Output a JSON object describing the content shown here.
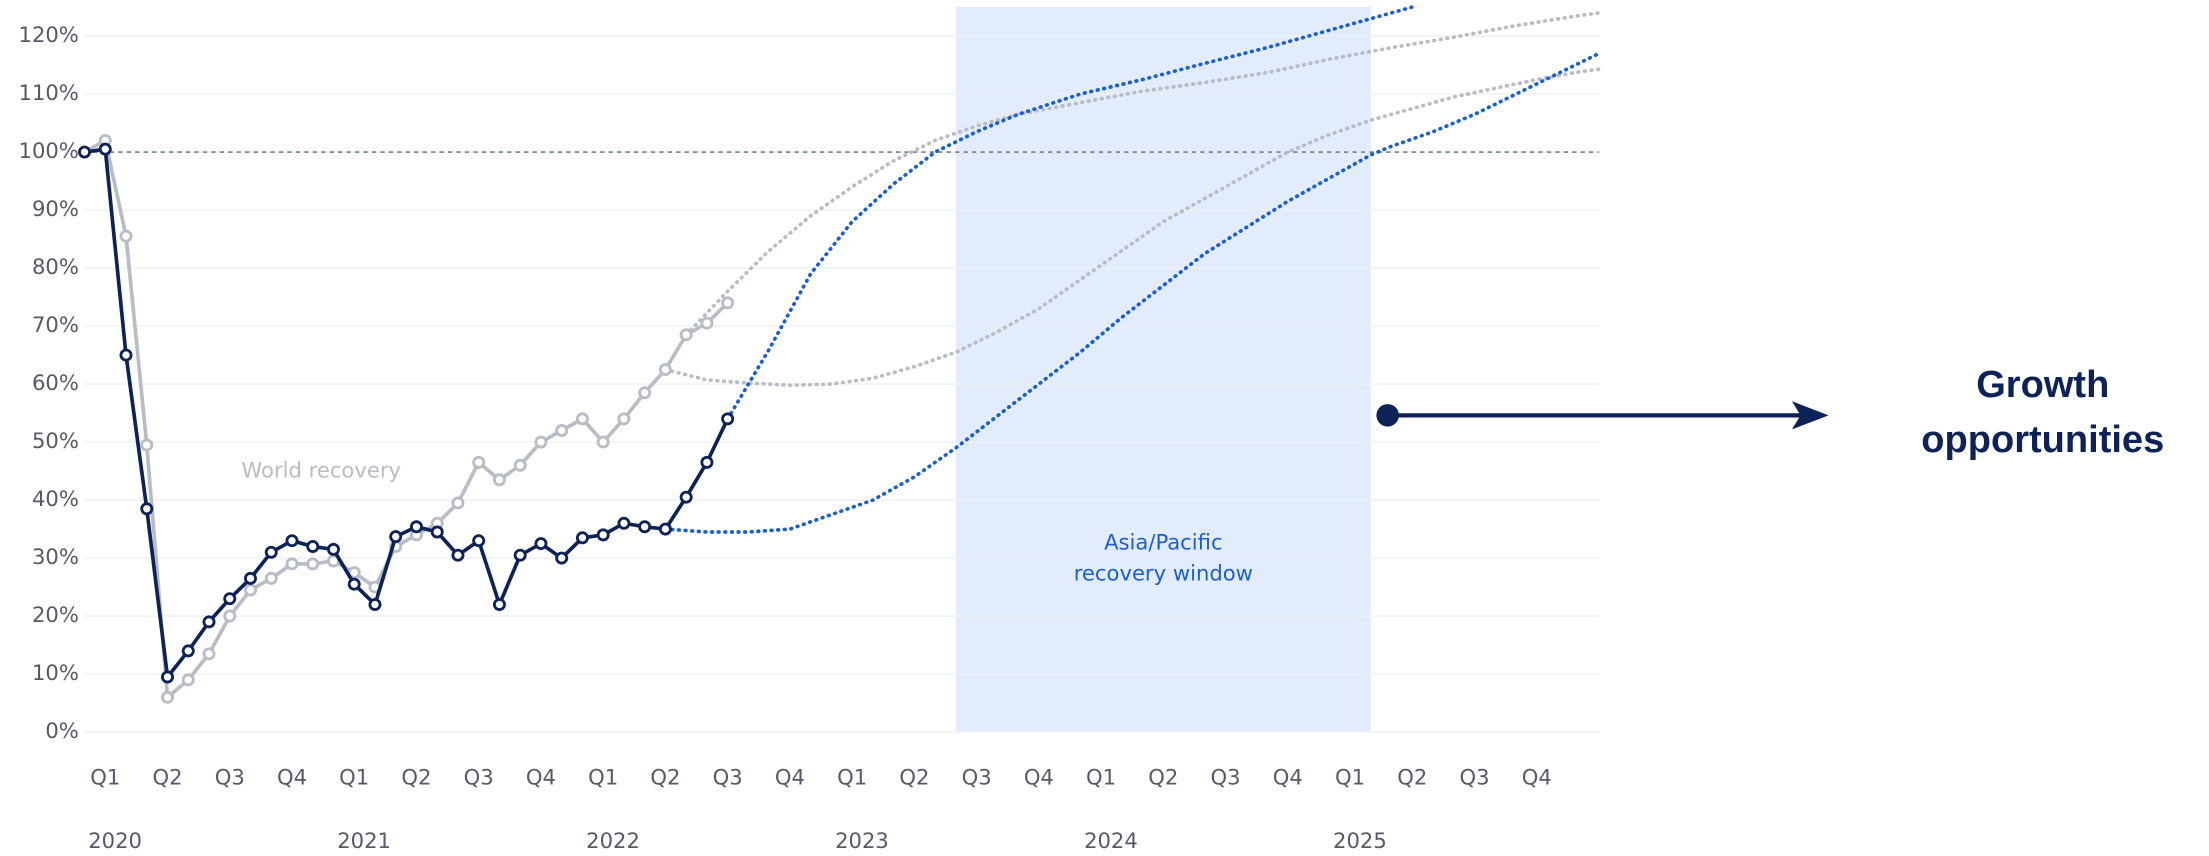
{
  "chart_data": {
    "type": "line",
    "xlim": [
      0,
      73
    ],
    "ylim": [
      0,
      125
    ],
    "yticks": [
      {
        "value": 0,
        "label": "0%"
      },
      {
        "value": 10,
        "label": "10%"
      },
      {
        "value": 20,
        "label": "20%"
      },
      {
        "value": 30,
        "label": "30%"
      },
      {
        "value": 40,
        "label": "40%"
      },
      {
        "value": 50,
        "label": "50%"
      },
      {
        "value": 60,
        "label": "60%"
      },
      {
        "value": 70,
        "label": "70%"
      },
      {
        "value": 80,
        "label": "80%"
      },
      {
        "value": 90,
        "label": "90%"
      },
      {
        "value": 100,
        "label": "100%"
      },
      {
        "value": 110,
        "label": "110%"
      },
      {
        "value": 120,
        "label": "120%"
      }
    ],
    "xticks": [
      {
        "value": 1,
        "label": "Q1"
      },
      {
        "value": 4,
        "label": "Q2"
      },
      {
        "value": 7,
        "label": "Q3"
      },
      {
        "value": 10,
        "label": "Q4"
      },
      {
        "value": 13,
        "label": "Q1"
      },
      {
        "value": 16,
        "label": "Q2"
      },
      {
        "value": 19,
        "label": "Q3"
      },
      {
        "value": 22,
        "label": "Q4"
      },
      {
        "value": 25,
        "label": "Q1"
      },
      {
        "value": 28,
        "label": "Q2"
      },
      {
        "value": 31,
        "label": "Q3"
      },
      {
        "value": 34,
        "label": "Q4"
      },
      {
        "value": 37,
        "label": "Q1"
      },
      {
        "value": 40,
        "label": "Q2"
      },
      {
        "value": 43,
        "label": "Q3"
      },
      {
        "value": 46,
        "label": "Q4"
      },
      {
        "value": 49,
        "label": "Q1"
      },
      {
        "value": 52,
        "label": "Q2"
      },
      {
        "value": 55,
        "label": "Q3"
      },
      {
        "value": 58,
        "label": "Q4"
      },
      {
        "value": 61,
        "label": "Q1"
      },
      {
        "value": 64,
        "label": "Q2"
      },
      {
        "value": 67,
        "label": "Q3"
      },
      {
        "value": 70,
        "label": "Q4"
      }
    ],
    "year_ticks": [
      {
        "value": 1,
        "label": "2020"
      },
      {
        "value": 13,
        "label": "2021"
      },
      {
        "value": 25,
        "label": "2022"
      },
      {
        "value": 37,
        "label": "2023"
      },
      {
        "value": 49,
        "label": "2024"
      },
      {
        "value": 61,
        "label": "2025"
      }
    ],
    "grid": true,
    "reference_line": 100,
    "x": [
      0,
      1,
      2,
      3,
      4,
      5,
      6,
      7,
      8,
      9,
      10,
      11,
      12,
      13,
      14,
      15,
      16,
      17,
      18,
      19,
      20,
      21,
      22,
      23,
      24,
      25,
      26,
      27,
      28,
      29,
      30,
      31
    ],
    "series": [
      {
        "name": "World recovery",
        "color": "#b8bcc4",
        "values": [
          100,
          102,
          85.5,
          49.5,
          6,
          9,
          13.5,
          20,
          24.5,
          26.5,
          29,
          29,
          29.5,
          27.5,
          25,
          32,
          34,
          36,
          39.5,
          46.5,
          43.5,
          46,
          50,
          52,
          54,
          50,
          54,
          58.5,
          62.5,
          68.5,
          70.5,
          74
        ]
      },
      {
        "color": "#0d2257",
        "values": [
          100,
          100.5,
          65,
          38.5,
          9.5,
          14,
          19,
          23,
          26.5,
          31,
          33,
          32,
          31.5,
          25.5,
          22,
          33.7,
          35.4,
          34.5,
          30.5,
          33,
          22,
          30.5,
          32.5,
          30,
          33.5,
          34,
          36,
          35.4,
          35,
          40.5,
          46.5,
          54
        ]
      }
    ],
    "projections": [
      {
        "color": "#b8bcc4",
        "x": [
          29,
          31,
          33,
          35,
          37,
          39,
          41,
          43,
          45,
          48,
          51,
          54,
          57,
          60,
          63,
          66,
          69,
          72,
          73
        ],
        "values": [
          68.5,
          76,
          83,
          89,
          94,
          98.5,
          102,
          104.5,
          106.5,
          108.5,
          110.5,
          112,
          113.7,
          116,
          118,
          119.8,
          121.8,
          123.5,
          124
        ]
      },
      {
        "color": "#b8bcc4",
        "x": [
          28,
          30,
          32,
          34,
          36,
          38,
          40,
          42,
          44,
          46,
          48,
          50,
          52,
          54,
          56,
          58,
          60,
          62,
          64,
          66,
          68,
          70,
          72,
          73
        ],
        "values": [
          62.5,
          60.7,
          60.2,
          59.8,
          60,
          61,
          63,
          65.5,
          69,
          73,
          78,
          83,
          88,
          92,
          96,
          100,
          103,
          105.5,
          107.5,
          109.5,
          111,
          112.5,
          113.8,
          114.3
        ]
      },
      {
        "color": "#1a5fd1",
        "x": [
          31,
          33,
          35,
          37,
          39,
          41,
          43,
          45,
          48,
          51,
          54,
          57,
          60,
          63,
          64
        ],
        "values": [
          54,
          66,
          79,
          88,
          94.5,
          100,
          103.5,
          106.5,
          110,
          112.5,
          115.3,
          118,
          121,
          124,
          125
        ]
      },
      {
        "color": "#1a5fd1",
        "x": [
          28,
          30,
          32,
          34,
          36,
          38,
          40,
          42,
          44,
          46,
          48,
          50,
          52,
          54,
          56,
          58,
          60,
          62,
          63,
          65,
          67,
          69,
          71,
          73
        ],
        "values": [
          35,
          34.5,
          34.5,
          35,
          37.5,
          40,
          44,
          49,
          54.5,
          60,
          65.5,
          71.5,
          77,
          82.5,
          87,
          91.5,
          95.5,
          99.5,
          101,
          103.5,
          106.5,
          110,
          113.5,
          117
        ]
      }
    ],
    "window": {
      "x": [
        42,
        62
      ],
      "color": "#e3ecfc",
      "label": [
        "Asia/Pacific",
        "recovery window"
      ]
    },
    "callout": [
      "Growth",
      "opportunities"
    ]
  }
}
